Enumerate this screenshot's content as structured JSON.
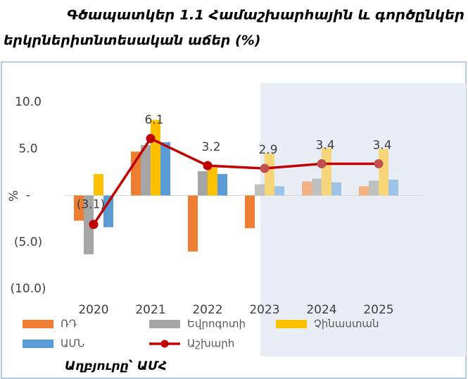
{
  "chart_data": {
    "type": "bar_line",
    "title_line1": "Գծապատկեր 1.1 Համաշխարհային և գործընկեր",
    "title_line2": "երկրներիտնտեսական աճեր (%)",
    "ylabel": "%",
    "source": "Աղբյուրը՝ ԱՄՀ",
    "categories": [
      "2020",
      "2021",
      "2022",
      "2023",
      "2024",
      "2025"
    ],
    "ylim": [
      -10,
      10
    ],
    "yticks": [
      {
        "value": 10,
        "label": "10.0"
      },
      {
        "value": 5,
        "label": "5.0"
      },
      {
        "value": 0,
        "label": "-"
      },
      {
        "value": -5,
        "label": "(5.0)"
      },
      {
        "value": -10,
        "label": "(10.0)"
      }
    ],
    "series": [
      {
        "name": "ՌԴ",
        "kind": "bar",
        "color": "#ed7d31",
        "colors": [
          "#ed7d31",
          "#ed7d31",
          "#ed7d31",
          "#ed7d31",
          "#f4b183",
          "#f4b183"
        ],
        "values": [
          -2.7,
          4.7,
          -6.0,
          -3.5,
          1.5,
          1.0
        ]
      },
      {
        "name": "Եվրոգոտի",
        "kind": "bar",
        "color": "#a5a5a5",
        "colors": [
          "#a5a5a5",
          "#a5a5a5",
          "#a5a5a5",
          "#c0c0c0",
          "#c0c0c0",
          "#c0c0c0"
        ],
        "values": [
          -6.3,
          5.4,
          2.6,
          1.2,
          1.8,
          1.6
        ]
      },
      {
        "name": "Չինաստան",
        "kind": "bar",
        "color": "#ffc000",
        "colors": [
          "#ffc000",
          "#ffc000",
          "#ffc000",
          "#f7d67a",
          "#f7d67a",
          "#f7d67a"
        ],
        "values": [
          2.3,
          8.1,
          3.0,
          4.5,
          5.1,
          5.0
        ]
      },
      {
        "name": "ԱՄՆ",
        "kind": "bar",
        "color": "#5b9bd5",
        "colors": [
          "#5b9bd5",
          "#5b9bd5",
          "#5b9bd5",
          "#9dc3e6",
          "#9dc3e6",
          "#9dc3e6"
        ],
        "values": [
          -3.4,
          5.7,
          2.3,
          1.0,
          1.4,
          1.7
        ]
      },
      {
        "name": "Աշխարհ",
        "kind": "line",
        "color": "#c00000",
        "colors": [
          "#c00000",
          "#c00000",
          "#c00000",
          "#c0504d",
          "#c0504d",
          "#c0504d"
        ],
        "values": [
          -3.1,
          6.1,
          3.2,
          2.9,
          3.4,
          3.4
        ],
        "value_labels": [
          "(3.1)",
          "6.1",
          "3.2",
          "2.9",
          "3.4",
          "3.4"
        ]
      }
    ]
  }
}
